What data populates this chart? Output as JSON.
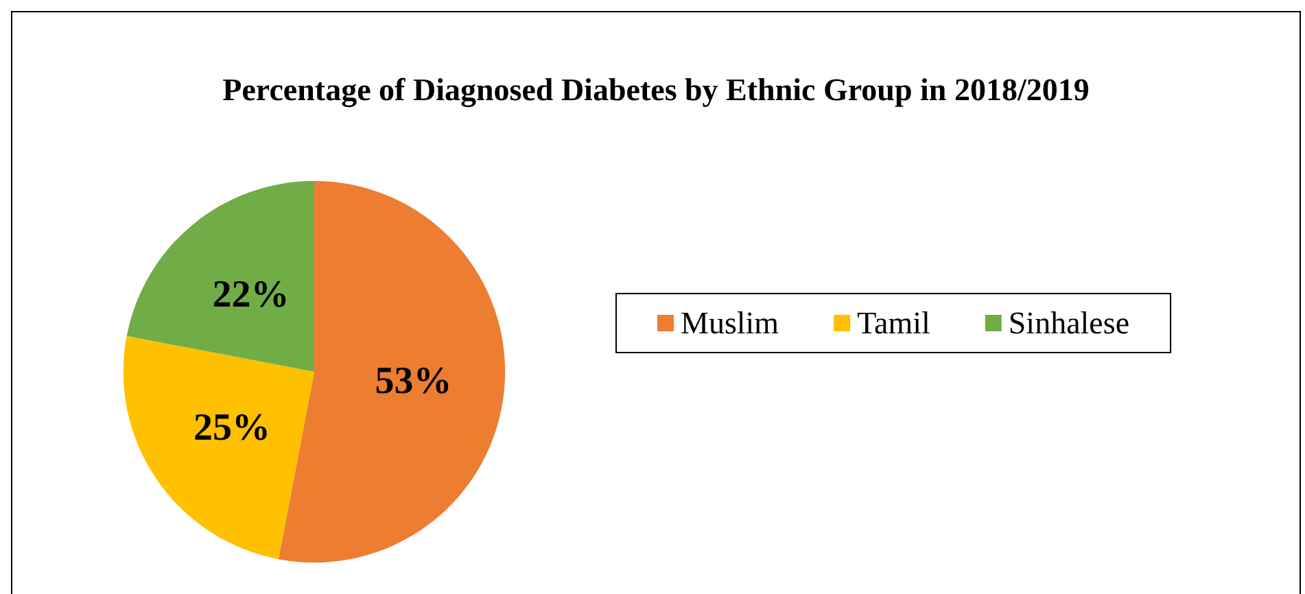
{
  "chart_data": {
    "type": "pie",
    "title": "Percentage of Diagnosed Diabetes by Ethnic Group in 2018/2019",
    "categories": [
      "Muslim",
      "Tamil",
      "Sinhalese"
    ],
    "values": [
      53,
      25,
      22
    ],
    "colors": [
      "#ed7d31",
      "#ffc000",
      "#70ad47"
    ],
    "value_labels": [
      "53%",
      "25%",
      "22%"
    ],
    "legend": "right"
  }
}
